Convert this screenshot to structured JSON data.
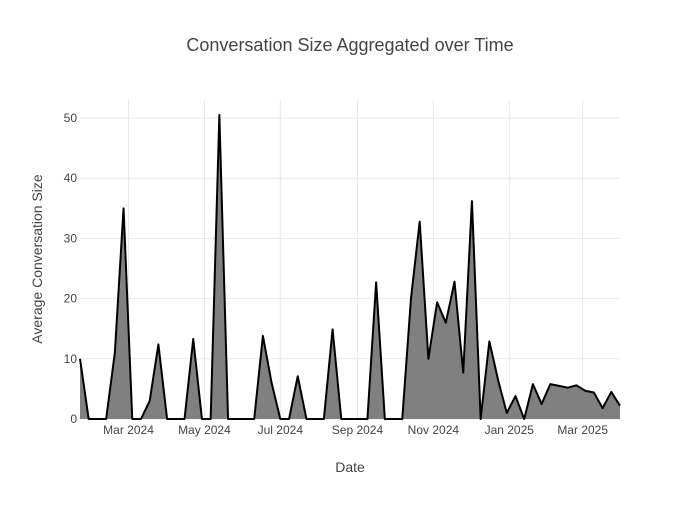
{
  "chart_data": {
    "type": "area",
    "title": "Conversation Size Aggregated over Time",
    "xlabel": "Date",
    "ylabel": "Average Conversation Size",
    "x_tick_labels": [
      "Mar 2024",
      "May 2024",
      "Jul 2024",
      "Sep 2024",
      "Nov 2024",
      "Jan 2025",
      "Mar 2025"
    ],
    "x_tick_dates": [
      "2024-03-01",
      "2024-05-01",
      "2024-07-01",
      "2024-09-01",
      "2024-11-01",
      "2025-01-01",
      "2025-03-01"
    ],
    "y_ticks": [
      0,
      10,
      20,
      30,
      40,
      50
    ],
    "xlim": [
      "2024-01-22",
      "2025-03-31"
    ],
    "ylim": [
      0,
      53
    ],
    "grid": true,
    "colors": {
      "line": "#000000",
      "fill": "#808080",
      "grid": "#e9e9e9",
      "text": "#444444",
      "title": "#444444"
    },
    "points": [
      [
        "2024-01-22",
        10.0
      ],
      [
        "2024-01-29",
        0
      ],
      [
        "2024-02-05",
        0
      ],
      [
        "2024-02-12",
        0
      ],
      [
        "2024-02-19",
        11.0
      ],
      [
        "2024-02-26",
        35.0
      ],
      [
        "2024-03-04",
        0
      ],
      [
        "2024-03-11",
        0
      ],
      [
        "2024-03-18",
        3.0
      ],
      [
        "2024-03-25",
        12.4
      ],
      [
        "2024-04-01",
        0
      ],
      [
        "2024-04-08",
        0
      ],
      [
        "2024-04-15",
        0
      ],
      [
        "2024-04-22",
        13.3
      ],
      [
        "2024-04-29",
        0
      ],
      [
        "2024-05-06",
        0
      ],
      [
        "2024-05-13",
        50.5
      ],
      [
        "2024-05-20",
        0
      ],
      [
        "2024-05-27",
        0
      ],
      [
        "2024-06-03",
        0
      ],
      [
        "2024-06-10",
        0
      ],
      [
        "2024-06-17",
        13.8
      ],
      [
        "2024-06-24",
        6.0
      ],
      [
        "2024-07-01",
        0
      ],
      [
        "2024-07-08",
        0
      ],
      [
        "2024-07-15",
        7.1
      ],
      [
        "2024-07-22",
        0
      ],
      [
        "2024-07-29",
        0
      ],
      [
        "2024-08-05",
        0
      ],
      [
        "2024-08-12",
        14.9
      ],
      [
        "2024-08-19",
        0
      ],
      [
        "2024-08-26",
        0
      ],
      [
        "2024-09-02",
        0
      ],
      [
        "2024-09-09",
        0
      ],
      [
        "2024-09-16",
        22.7
      ],
      [
        "2024-09-23",
        0
      ],
      [
        "2024-09-30",
        0
      ],
      [
        "2024-10-07",
        0
      ],
      [
        "2024-10-14",
        20.0
      ],
      [
        "2024-10-21",
        32.8
      ],
      [
        "2024-10-28",
        10.0
      ],
      [
        "2024-11-04",
        19.4
      ],
      [
        "2024-11-11",
        16.0
      ],
      [
        "2024-11-18",
        22.8
      ],
      [
        "2024-11-25",
        7.7
      ],
      [
        "2024-12-02",
        36.2
      ],
      [
        "2024-12-09",
        0
      ],
      [
        "2024-12-16",
        12.9
      ],
      [
        "2024-12-23",
        6.5
      ],
      [
        "2024-12-30",
        1.0
      ],
      [
        "2025-01-06",
        3.8
      ],
      [
        "2025-01-13",
        0
      ],
      [
        "2025-01-20",
        5.8
      ],
      [
        "2025-01-27",
        2.5
      ],
      [
        "2025-02-03",
        5.8
      ],
      [
        "2025-02-10",
        5.5
      ],
      [
        "2025-02-17",
        5.2
      ],
      [
        "2025-02-24",
        5.6
      ],
      [
        "2025-03-03",
        4.7
      ],
      [
        "2025-03-10",
        4.4
      ],
      [
        "2025-03-17",
        1.8
      ],
      [
        "2025-03-24",
        4.5
      ],
      [
        "2025-03-31",
        2.2
      ]
    ]
  }
}
